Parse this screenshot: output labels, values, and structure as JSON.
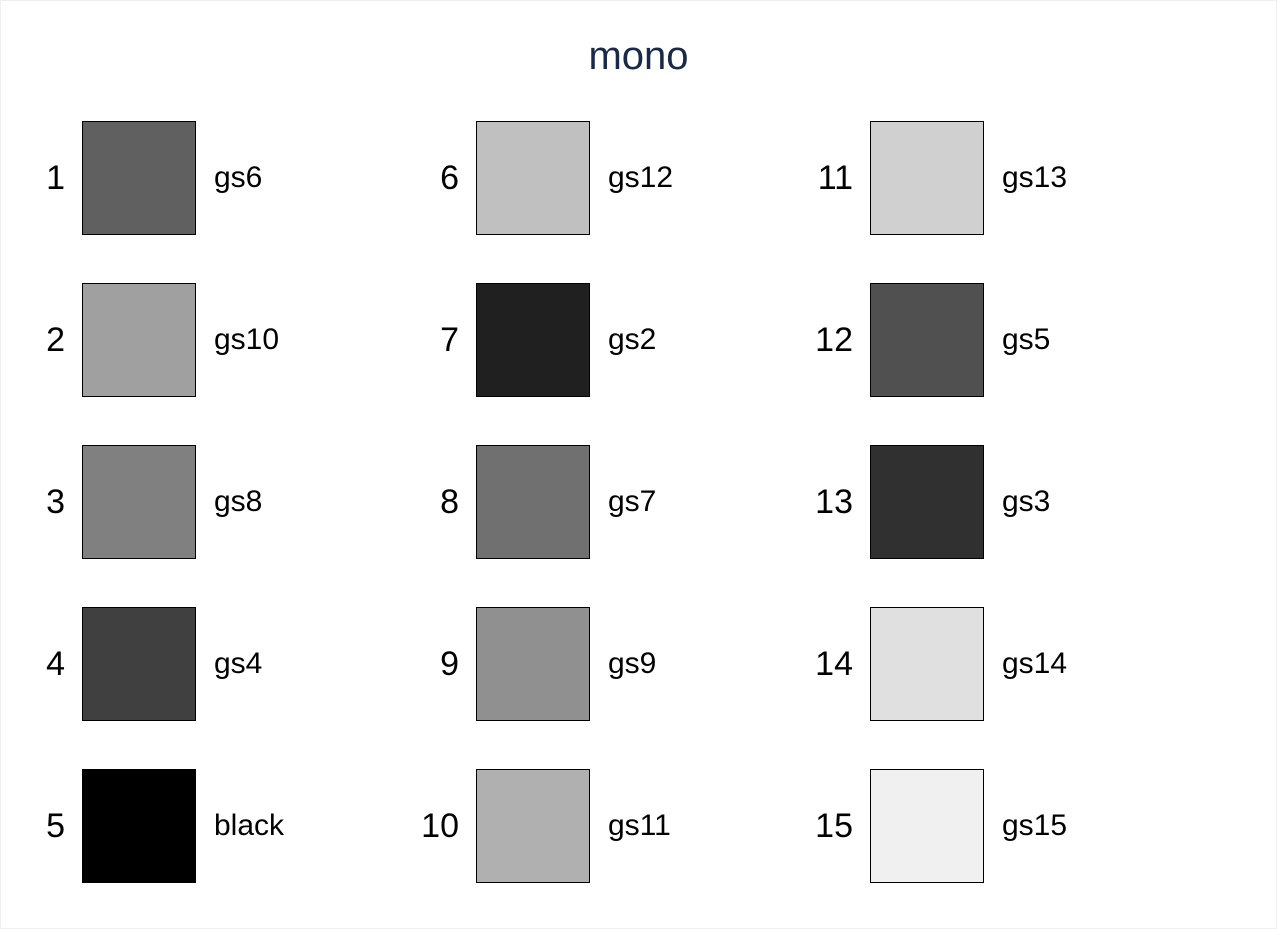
{
  "title": "mono",
  "swatches": [
    {
      "index": "1",
      "name": "gs6",
      "color": "#606060"
    },
    {
      "index": "2",
      "name": "gs10",
      "color": "#a0a0a0"
    },
    {
      "index": "3",
      "name": "gs8",
      "color": "#808080"
    },
    {
      "index": "4",
      "name": "gs4",
      "color": "#404040"
    },
    {
      "index": "5",
      "name": "black",
      "color": "#000000"
    },
    {
      "index": "6",
      "name": "gs12",
      "color": "#c0c0c0"
    },
    {
      "index": "7",
      "name": "gs2",
      "color": "#202020"
    },
    {
      "index": "8",
      "name": "gs7",
      "color": "#707070"
    },
    {
      "index": "9",
      "name": "gs9",
      "color": "#909090"
    },
    {
      "index": "10",
      "name": "gs11",
      "color": "#b0b0b0"
    },
    {
      "index": "11",
      "name": "gs13",
      "color": "#d0d0d0"
    },
    {
      "index": "12",
      "name": "gs5",
      "color": "#505050"
    },
    {
      "index": "13",
      "name": "gs3",
      "color": "#303030"
    },
    {
      "index": "14",
      "name": "gs14",
      "color": "#e0e0e0"
    },
    {
      "index": "15",
      "name": "gs15",
      "color": "#f0f0f0"
    }
  ]
}
